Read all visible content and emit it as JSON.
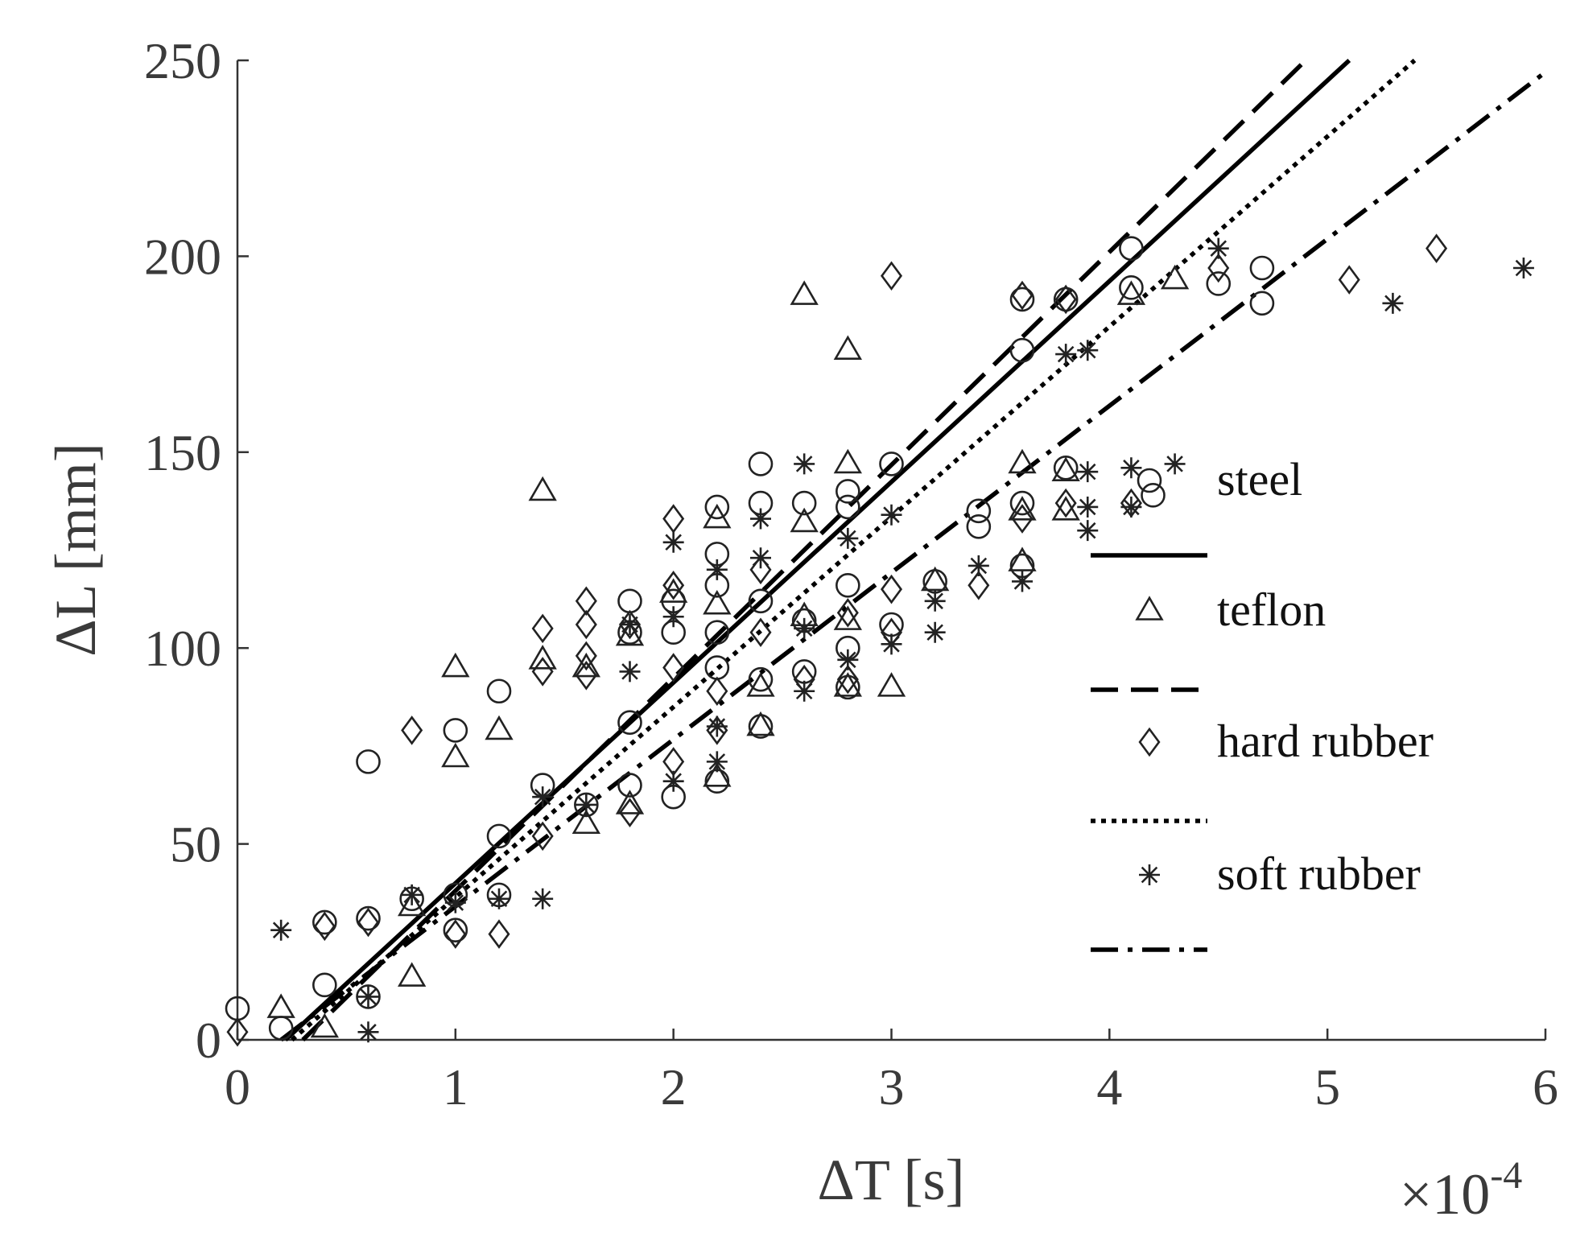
{
  "chart_data": {
    "type": "scatter",
    "title": "",
    "xlabel": "ΔT [s]",
    "ylabel": "ΔL [mm]",
    "x_multiplier": "×10",
    "x_multiplier_exponent": "-4",
    "xlim": [
      0,
      6
    ],
    "ylim": [
      0,
      250
    ],
    "xticks": [
      "0",
      "1",
      "2",
      "3",
      "4",
      "5",
      "6"
    ],
    "yticks": [
      "0",
      "50",
      "100",
      "150",
      "200",
      "250"
    ],
    "x_unit_scale": 0.0001,
    "grid": false,
    "box": false,
    "legend_position": "right",
    "series": [
      {
        "name": "steel",
        "marker": "circle",
        "points": [
          [
            0,
            8
          ],
          [
            0.2,
            3
          ],
          [
            0.4,
            30
          ],
          [
            0.4,
            14
          ],
          [
            0.6,
            71
          ],
          [
            0.6,
            31
          ],
          [
            0.6,
            11
          ],
          [
            0.8,
            36
          ],
          [
            1,
            79
          ],
          [
            1,
            37
          ],
          [
            1,
            28
          ],
          [
            1.2,
            89
          ],
          [
            1.2,
            52
          ],
          [
            1.2,
            37
          ],
          [
            1.4,
            65
          ],
          [
            1.6,
            60
          ],
          [
            1.8,
            112
          ],
          [
            1.8,
            104
          ],
          [
            1.8,
            81
          ],
          [
            1.8,
            65
          ],
          [
            2,
            112
          ],
          [
            2,
            104
          ],
          [
            2,
            62
          ],
          [
            2.2,
            136
          ],
          [
            2.2,
            124
          ],
          [
            2.2,
            116
          ],
          [
            2.2,
            104
          ],
          [
            2.2,
            95
          ],
          [
            2.2,
            66
          ],
          [
            2.4,
            147
          ],
          [
            2.4,
            137
          ],
          [
            2.4,
            112
          ],
          [
            2.4,
            92
          ],
          [
            2.4,
            80
          ],
          [
            2.6,
            137
          ],
          [
            2.6,
            107
          ],
          [
            2.6,
            94
          ],
          [
            2.8,
            140
          ],
          [
            2.8,
            136
          ],
          [
            2.8,
            116
          ],
          [
            2.8,
            100
          ],
          [
            2.8,
            90
          ],
          [
            3,
            147
          ],
          [
            3,
            106
          ],
          [
            3.2,
            117
          ],
          [
            3.4,
            135
          ],
          [
            3.4,
            131
          ],
          [
            3.6,
            189
          ],
          [
            3.6,
            176
          ],
          [
            3.6,
            137
          ],
          [
            3.6,
            121
          ],
          [
            3.8,
            189
          ],
          [
            3.8,
            146
          ],
          [
            4.1,
            202
          ],
          [
            4.1,
            192
          ],
          [
            4.2,
            139
          ],
          [
            4.5,
            193
          ],
          [
            4.7,
            197
          ],
          [
            4.7,
            188
          ]
        ]
      },
      {
        "name": "teflon",
        "marker": "triangle",
        "points": [
          [
            0.2,
            8
          ],
          [
            0.4,
            3
          ],
          [
            0.8,
            16
          ],
          [
            0.8,
            34
          ],
          [
            1,
            95
          ],
          [
            1,
            72
          ],
          [
            1.2,
            79
          ],
          [
            1.4,
            140
          ],
          [
            1.4,
            97
          ],
          [
            1.6,
            95
          ],
          [
            1.6,
            55
          ],
          [
            1.8,
            103
          ],
          [
            1.8,
            60
          ],
          [
            2,
            114
          ],
          [
            2.2,
            133
          ],
          [
            2.2,
            111
          ],
          [
            2.2,
            67
          ],
          [
            2.4,
            90
          ],
          [
            2.4,
            80
          ],
          [
            2.6,
            190
          ],
          [
            2.6,
            132
          ],
          [
            2.6,
            108
          ],
          [
            2.8,
            176
          ],
          [
            2.8,
            147
          ],
          [
            2.8,
            107
          ],
          [
            2.8,
            90
          ],
          [
            3,
            90
          ],
          [
            3.2,
            117
          ],
          [
            3.6,
            147
          ],
          [
            3.6,
            135
          ],
          [
            3.6,
            122
          ],
          [
            3.8,
            145
          ],
          [
            3.8,
            135
          ],
          [
            4.1,
            190
          ],
          [
            4.3,
            194
          ]
        ]
      },
      {
        "name": "hard rubber",
        "marker": "diamond",
        "points": [
          [
            0,
            2
          ],
          [
            0.4,
            29
          ],
          [
            0.6,
            30
          ],
          [
            0.8,
            79
          ],
          [
            1,
            27
          ],
          [
            1.2,
            27
          ],
          [
            1.4,
            105
          ],
          [
            1.4,
            94
          ],
          [
            1.4,
            52
          ],
          [
            1.6,
            112
          ],
          [
            1.6,
            106
          ],
          [
            1.6,
            98
          ],
          [
            1.6,
            93
          ],
          [
            1.8,
            106
          ],
          [
            1.8,
            58
          ],
          [
            2,
            133
          ],
          [
            2,
            116
          ],
          [
            2,
            95
          ],
          [
            2,
            71
          ],
          [
            2.2,
            89
          ],
          [
            2.2,
            79
          ],
          [
            2.4,
            120
          ],
          [
            2.4,
            104
          ],
          [
            2.6,
            92
          ],
          [
            2.8,
            109
          ],
          [
            2.8,
            92
          ],
          [
            3,
            195
          ],
          [
            3,
            115
          ],
          [
            3,
            104
          ],
          [
            3.4,
            116
          ],
          [
            3.6,
            190
          ],
          [
            3.6,
            133
          ],
          [
            3.8,
            189
          ],
          [
            3.8,
            137
          ],
          [
            4.1,
            137
          ],
          [
            4.5,
            197
          ],
          [
            5.1,
            194
          ],
          [
            5.5,
            202
          ]
        ]
      },
      {
        "name": "soft rubber",
        "marker": "star",
        "points": [
          [
            0.2,
            28
          ],
          [
            0.6,
            2
          ],
          [
            0.6,
            11
          ],
          [
            0.8,
            37
          ],
          [
            1,
            35
          ],
          [
            1.2,
            36
          ],
          [
            1.4,
            36
          ],
          [
            1.4,
            62
          ],
          [
            1.6,
            60
          ],
          [
            1.8,
            94
          ],
          [
            1.8,
            106
          ],
          [
            2,
            127
          ],
          [
            2,
            108
          ],
          [
            2,
            66
          ],
          [
            2.2,
            120
          ],
          [
            2.2,
            80
          ],
          [
            2.2,
            71
          ],
          [
            2.4,
            133
          ],
          [
            2.4,
            123
          ],
          [
            2.6,
            147
          ],
          [
            2.6,
            105
          ],
          [
            2.6,
            89
          ],
          [
            2.8,
            97
          ],
          [
            2.8,
            128
          ],
          [
            3,
            134
          ],
          [
            3,
            101
          ],
          [
            3.2,
            112
          ],
          [
            3.2,
            104
          ],
          [
            3.4,
            121
          ],
          [
            3.6,
            117
          ],
          [
            3.8,
            175
          ],
          [
            3.9,
            176
          ],
          [
            3.9,
            145
          ],
          [
            3.9,
            136
          ],
          [
            3.9,
            130
          ],
          [
            4.1,
            146
          ],
          [
            4.1,
            136
          ],
          [
            4.3,
            147
          ],
          [
            4.5,
            202
          ],
          [
            5.3,
            188
          ],
          [
            5.9,
            197
          ]
        ]
      }
    ],
    "fit_lines": [
      {
        "name": "steel",
        "style": "solid",
        "x": [
          0.22,
          5.1
        ],
        "y": [
          0,
          250
        ]
      },
      {
        "name": "teflon",
        "style": "dashed",
        "x": [
          0.3,
          4.9
        ],
        "y": [
          0,
          250
        ]
      },
      {
        "name": "hard rubber",
        "style": "dotted",
        "x": [
          0.25,
          5.4
        ],
        "y": [
          0,
          250
        ]
      },
      {
        "name": "soft rubber",
        "style": "dashdot",
        "x": [
          0.2,
          6.0
        ],
        "y": [
          0,
          247
        ]
      }
    ]
  }
}
